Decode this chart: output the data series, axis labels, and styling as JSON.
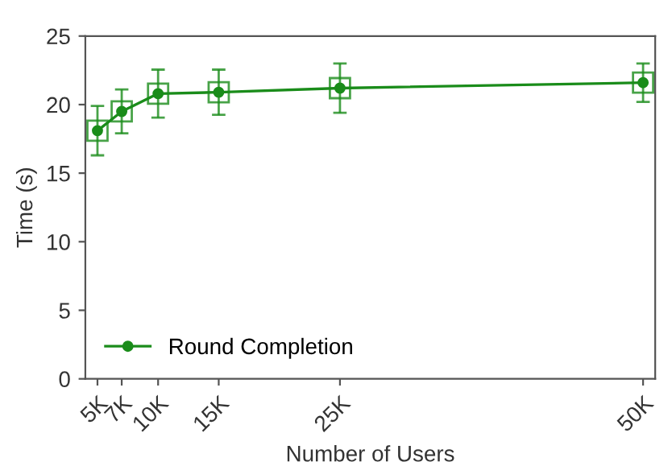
{
  "chart_data": {
    "type": "line",
    "xlabel": "Number of Users",
    "ylabel": "Time (s)",
    "x": [
      5000,
      7000,
      10000,
      15000,
      25000,
      50000
    ],
    "series": [
      {
        "name": "Round Completion",
        "color": "#1a8c1a",
        "values": [
          18.1,
          19.5,
          20.8,
          20.9,
          21.2,
          21.6
        ],
        "errors": [
          1.8,
          1.6,
          1.75,
          1.65,
          1.8,
          1.4
        ]
      }
    ],
    "xlim": [
      4000,
      51000
    ],
    "xticks": [
      {
        "value": 5000,
        "label": "5K"
      },
      {
        "value": 7000,
        "label": "7K"
      },
      {
        "value": 10000,
        "label": "10K"
      },
      {
        "value": 15000,
        "label": "15K"
      },
      {
        "value": 25000,
        "label": "25K"
      },
      {
        "value": 50000,
        "label": "50K"
      }
    ],
    "ylim": [
      0,
      25
    ],
    "yticks": [
      0,
      5,
      10,
      15,
      20,
      25
    ],
    "marker": "circle",
    "legend": "bottom left",
    "grid": false
  }
}
